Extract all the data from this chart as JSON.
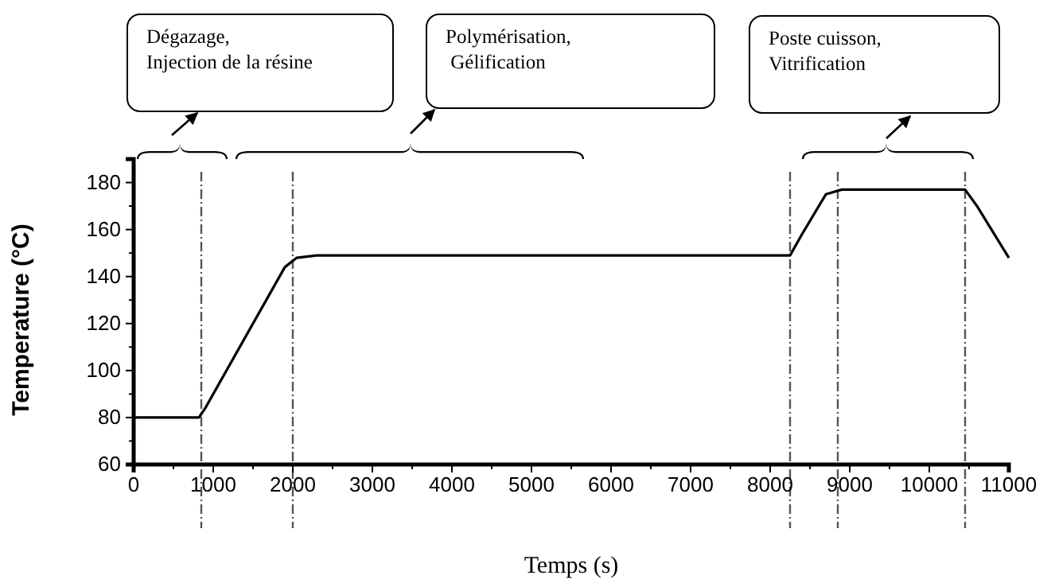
{
  "chart_data": {
    "type": "line",
    "xlabel": "Temps (s)",
    "ylabel": "Temperature (°C)",
    "x": [
      0,
      820,
      900,
      1900,
      2050,
      2300,
      8250,
      8400,
      8700,
      8900,
      10450,
      10600,
      11000
    ],
    "series": [
      {
        "color": "#000000",
        "values": [
          80,
          80,
          84,
          144,
          148,
          149,
          149,
          158,
          175,
          177,
          177,
          170,
          148
        ]
      }
    ],
    "xlim": [
      0,
      11000
    ],
    "xticks": [
      0,
      1000,
      2000,
      3000,
      4000,
      5000,
      6000,
      7000,
      8000,
      9000,
      10000,
      11000
    ],
    "ylim": [
      60,
      190
    ],
    "yticks": [
      60,
      80,
      100,
      120,
      140,
      160,
      180
    ],
    "grid": false,
    "marker": "none",
    "line_style": "solid",
    "ref_lines": [
      {
        "axis": "x",
        "value": 850,
        "label": null,
        "color": "#555555",
        "line_style": "dashdot"
      },
      {
        "axis": "x",
        "value": 2000,
        "label": null,
        "color": "#555555",
        "line_style": "dashdot"
      },
      {
        "axis": "x",
        "value": 8250,
        "label": null,
        "color": "#555555",
        "line_style": "dashdot"
      },
      {
        "axis": "x",
        "value": 8850,
        "label": null,
        "color": "#555555",
        "line_style": "dashdot"
      },
      {
        "axis": "x",
        "value": 10450,
        "label": null,
        "color": "#555555",
        "line_style": "dashdot"
      }
    ],
    "annotations": [
      "Dégazage,\nInjection de la résine",
      "Polymérisation,\n Gélification",
      "Poste cuisson,\nVitrification"
    ]
  }
}
